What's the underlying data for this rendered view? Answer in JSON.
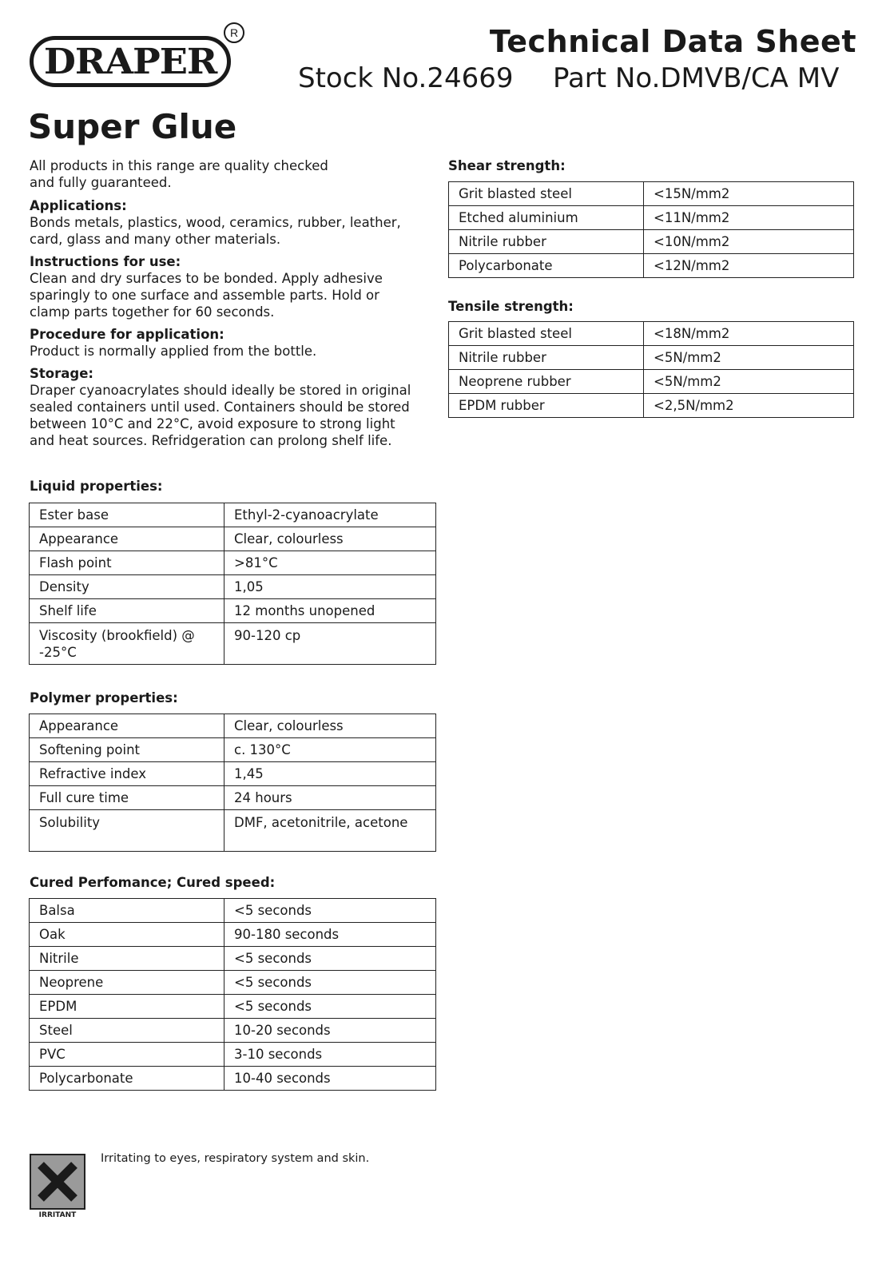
{
  "header": {
    "brand": "DRAPER",
    "registered": "R",
    "doc_title": "Technical Data Sheet",
    "stock_no": "Stock No.24669",
    "part_no": "Part No.DMVB/CA MV",
    "product_title": "Super Glue"
  },
  "intro": "All products in this range are quality checked and fully guaranteed.",
  "sections": [
    {
      "heading": "Applications:",
      "text": "Bonds metals, plastics, wood, ceramics, rubber, leather, card, glass and many other materials."
    },
    {
      "heading": "Instructions for use:",
      "text": "Clean and dry surfaces to be bonded. Apply adhesive sparingly to one surface and assemble parts. Hold or clamp parts together for 60 seconds."
    },
    {
      "heading": "Procedure for application:",
      "text": "Product is normally applied from the bottle."
    },
    {
      "heading": "Storage:",
      "text": "Draper cyanoacrylates should ideally be stored in original sealed containers until used. Containers should be stored between 10°C and 22°C, avoid exposure to strong light and heat sources. Refridgeration can prolong shelf life."
    }
  ],
  "tables": {
    "liquid": {
      "heading": "Liquid properties:",
      "rows": [
        [
          "Ester base",
          "Ethyl-2-cyanoacrylate"
        ],
        [
          "Appearance",
          "Clear, colourless"
        ],
        [
          "Flash point",
          ">81°C"
        ],
        [
          "Density",
          "1,05"
        ],
        [
          "Shelf life",
          "12 months unopened"
        ],
        [
          "Viscosity (brookfield) @ -25°C",
          "90-120 cp"
        ]
      ]
    },
    "polymer": {
      "heading": "Polymer properties:",
      "rows": [
        [
          "Appearance",
          "Clear, colourless"
        ],
        [
          "Softening point",
          "c. 130°C"
        ],
        [
          "Refractive index",
          "1,45"
        ],
        [
          "Full cure time",
          "24 hours"
        ],
        [
          "Solubility",
          "DMF, acetonitrile, acetone"
        ]
      ]
    },
    "cured": {
      "heading": "Cured Perfomance; Cured speed:",
      "rows": [
        [
          "Balsa",
          "<5 seconds"
        ],
        [
          "Oak",
          "90-180 seconds"
        ],
        [
          "Nitrile",
          "<5 seconds"
        ],
        [
          "Neoprene",
          "<5 seconds"
        ],
        [
          "EPDM",
          "<5 seconds"
        ],
        [
          "Steel",
          "10-20 seconds"
        ],
        [
          "PVC",
          "3-10 seconds"
        ],
        [
          "Polycarbonate",
          "10-40 seconds"
        ]
      ]
    },
    "shear": {
      "heading": "Shear strength:",
      "rows": [
        [
          "Grit blasted steel",
          "<15N/mm2"
        ],
        [
          "Etched aluminium",
          "<11N/mm2"
        ],
        [
          "Nitrile rubber",
          "<10N/mm2"
        ],
        [
          "Polycarbonate",
          "<12N/mm2"
        ]
      ]
    },
    "tensile": {
      "heading": "Tensile strength:",
      "rows": [
        [
          "Grit blasted steel",
          "<18N/mm2"
        ],
        [
          "Nitrile rubber",
          "<5N/mm2"
        ],
        [
          "Neoprene rubber",
          "<5N/mm2"
        ],
        [
          "EPDM rubber",
          "<2,5N/mm2"
        ]
      ]
    }
  },
  "warning": {
    "icon": "irritant-x-icon",
    "label": "IRRITANT",
    "text": "Irritating to eyes, respiratory system and skin."
  }
}
